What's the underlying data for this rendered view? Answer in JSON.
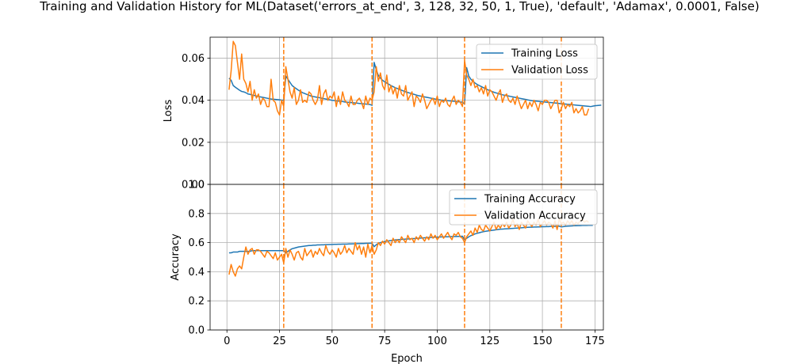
{
  "figure": {
    "title": "Training and Validation History for ML(Dataset('errors_at_end', 3, 128, 32, 50, 1, True), 'default', 'Adamax', 0.0001, False)"
  },
  "chart_data": [
    {
      "type": "line",
      "panel": "loss",
      "title": "",
      "xlabel": "",
      "ylabel": "Loss",
      "xlim": [
        -8,
        179
      ],
      "ylim": [
        0.0,
        0.07
      ],
      "x_ticks": [
        0,
        25,
        50,
        75,
        100,
        125,
        150,
        175
      ],
      "y_ticks": [
        0.0,
        0.02,
        0.04,
        0.06
      ],
      "y_tick_labels": [
        "0.00",
        "0.02",
        "0.04",
        "0.06"
      ],
      "grid": true,
      "legend": "upper right",
      "vlines": [
        27,
        69,
        113,
        159
      ],
      "series": [
        {
          "name": "Training Loss",
          "color": "#1f77b4",
          "x_start": 1,
          "values": [
            0.0505,
            0.0495,
            0.047,
            0.0462,
            0.0455,
            0.0448,
            0.0442,
            0.044,
            0.0436,
            0.043,
            0.0428,
            0.0425,
            0.0423,
            0.042,
            0.0418,
            0.0416,
            0.0414,
            0.0412,
            0.041,
            0.0408,
            0.0406,
            0.0405,
            0.0404,
            0.0403,
            0.0402,
            0.0401,
            0.04,
            0.0515,
            0.05,
            0.0485,
            0.047,
            0.0462,
            0.0455,
            0.0448,
            0.0442,
            0.0436,
            0.0432,
            0.0428,
            0.0424,
            0.042,
            0.0418,
            0.0416,
            0.0414,
            0.0412,
            0.041,
            0.0408,
            0.0406,
            0.0404,
            0.0402,
            0.04,
            0.0399,
            0.0397,
            0.0396,
            0.0395,
            0.0394,
            0.0392,
            0.0391,
            0.039,
            0.0389,
            0.0388,
            0.0387,
            0.0386,
            0.0385,
            0.0384,
            0.0383,
            0.0382,
            0.0381,
            0.038,
            0.0376,
            0.058,
            0.0545,
            0.0518,
            0.0505,
            0.0495,
            0.0488,
            0.0482,
            0.0476,
            0.047,
            0.0465,
            0.046,
            0.0456,
            0.0452,
            0.0448,
            0.0444,
            0.044,
            0.0437,
            0.0434,
            0.0431,
            0.0428,
            0.0425,
            0.0422,
            0.042,
            0.0418,
            0.0416,
            0.0414,
            0.0412,
            0.041,
            0.0408,
            0.0406,
            0.0404,
            0.0402,
            0.0401,
            0.04,
            0.0399,
            0.0398,
            0.0397,
            0.0396,
            0.0395,
            0.0394,
            0.0393,
            0.0392,
            0.0391,
            0.0382,
            0.0555,
            0.0515,
            0.05,
            0.049,
            0.0482,
            0.0475,
            0.047,
            0.0465,
            0.046,
            0.0455,
            0.045,
            0.0446,
            0.0442,
            0.0438,
            0.0435,
            0.0432,
            0.0429,
            0.0426,
            0.0424,
            0.0422,
            0.042,
            0.0418,
            0.0416,
            0.0414,
            0.0412,
            0.041,
            0.0408,
            0.0406,
            0.0404,
            0.0402,
            0.04,
            0.0398,
            0.0397,
            0.0396,
            0.0395,
            0.0394,
            0.0393,
            0.0392,
            0.0391,
            0.039,
            0.0389,
            0.0388,
            0.0387,
            0.0386,
            0.0385,
            0.0384,
            0.0383,
            0.0382,
            0.0381,
            0.038,
            0.0379,
            0.0378,
            0.0377,
            0.0376,
            0.0375,
            0.0374,
            0.0373,
            0.0372,
            0.0371,
            0.037,
            0.0372,
            0.0374,
            0.0375,
            0.0376,
            0.0377
          ]
        },
        {
          "name": "Validation Loss",
          "color": "#ff7f0e",
          "x_start": 1,
          "values": [
            0.045,
            0.054,
            0.068,
            0.066,
            0.058,
            0.05,
            0.062,
            0.05,
            0.048,
            0.044,
            0.049,
            0.04,
            0.045,
            0.041,
            0.043,
            0.038,
            0.041,
            0.04,
            0.037,
            0.037,
            0.05,
            0.04,
            0.039,
            0.035,
            0.033,
            0.04,
            0.037,
            0.056,
            0.05,
            0.044,
            0.041,
            0.046,
            0.038,
            0.04,
            0.045,
            0.039,
            0.04,
            0.039,
            0.044,
            0.043,
            0.04,
            0.038,
            0.04,
            0.047,
            0.038,
            0.043,
            0.045,
            0.04,
            0.042,
            0.041,
            0.044,
            0.037,
            0.042,
            0.038,
            0.044,
            0.04,
            0.039,
            0.037,
            0.042,
            0.038,
            0.038,
            0.04,
            0.041,
            0.039,
            0.036,
            0.042,
            0.038,
            0.041,
            0.04,
            0.044,
            0.056,
            0.049,
            0.053,
            0.047,
            0.045,
            0.052,
            0.044,
            0.047,
            0.043,
            0.046,
            0.041,
            0.047,
            0.043,
            0.042,
            0.047,
            0.04,
            0.042,
            0.044,
            0.037,
            0.042,
            0.041,
            0.039,
            0.043,
            0.04,
            0.036,
            0.038,
            0.04,
            0.041,
            0.038,
            0.042,
            0.037,
            0.04,
            0.039,
            0.041,
            0.038,
            0.037,
            0.04,
            0.042,
            0.038,
            0.04,
            0.039,
            0.037,
            0.059,
            0.052,
            0.05,
            0.047,
            0.05,
            0.046,
            0.047,
            0.044,
            0.046,
            0.043,
            0.047,
            0.042,
            0.045,
            0.044,
            0.042,
            0.04,
            0.043,
            0.045,
            0.039,
            0.042,
            0.043,
            0.04,
            0.039,
            0.041,
            0.038,
            0.042,
            0.039,
            0.036,
            0.038,
            0.04,
            0.036,
            0.039,
            0.037,
            0.04,
            0.038,
            0.035,
            0.039,
            0.038,
            0.04,
            0.04,
            0.039,
            0.036,
            0.038,
            0.04,
            0.04,
            0.034,
            0.036,
            0.039,
            0.036,
            0.038,
            0.037,
            0.039,
            0.034,
            0.036,
            0.034,
            0.035,
            0.037,
            0.033,
            0.033,
            0.036
          ]
        }
      ]
    },
    {
      "type": "line",
      "panel": "accuracy",
      "title": "",
      "xlabel": "Epoch",
      "ylabel": "Accuracy",
      "xlim": [
        -8,
        179
      ],
      "ylim": [
        0.0,
        1.0
      ],
      "x_ticks": [
        0,
        25,
        50,
        75,
        100,
        125,
        150,
        175
      ],
      "y_ticks": [
        0.0,
        0.2,
        0.4,
        0.6,
        0.8,
        1.0
      ],
      "y_tick_labels": [
        "0.0",
        "0.2",
        "0.4",
        "0.6",
        "0.8",
        "1.0"
      ],
      "grid": true,
      "legend": "upper right",
      "vlines": [
        27,
        69,
        113,
        159
      ],
      "series": [
        {
          "name": "Training Accuracy",
          "color": "#1f77b4",
          "x_start": 1,
          "values": [
            0.53,
            0.53,
            0.535,
            0.535,
            0.535,
            0.54,
            0.54,
            0.54,
            0.54,
            0.54,
            0.54,
            0.545,
            0.545,
            0.545,
            0.545,
            0.545,
            0.545,
            0.545,
            0.545,
            0.545,
            0.545,
            0.545,
            0.545,
            0.545,
            0.545,
            0.545,
            0.545,
            0.53,
            0.54,
            0.55,
            0.558,
            0.562,
            0.566,
            0.57,
            0.572,
            0.574,
            0.576,
            0.578,
            0.58,
            0.58,
            0.582,
            0.582,
            0.584,
            0.584,
            0.585,
            0.585,
            0.586,
            0.586,
            0.587,
            0.587,
            0.588,
            0.588,
            0.589,
            0.589,
            0.59,
            0.59,
            0.59,
            0.591,
            0.591,
            0.592,
            0.592,
            0.593,
            0.593,
            0.594,
            0.594,
            0.595,
            0.595,
            0.596,
            0.596,
            0.572,
            0.585,
            0.595,
            0.6,
            0.604,
            0.607,
            0.61,
            0.612,
            0.614,
            0.616,
            0.618,
            0.62,
            0.621,
            0.622,
            0.623,
            0.624,
            0.625,
            0.626,
            0.627,
            0.628,
            0.629,
            0.63,
            0.631,
            0.632,
            0.633,
            0.634,
            0.635,
            0.636,
            0.637,
            0.637,
            0.638,
            0.638,
            0.639,
            0.639,
            0.64,
            0.64,
            0.641,
            0.641,
            0.642,
            0.642,
            0.643,
            0.643,
            0.644,
            0.62,
            0.63,
            0.64,
            0.648,
            0.654,
            0.66,
            0.664,
            0.668,
            0.672,
            0.675,
            0.678,
            0.68,
            0.682,
            0.684,
            0.686,
            0.688,
            0.69,
            0.692,
            0.693,
            0.694,
            0.695,
            0.696,
            0.697,
            0.698,
            0.699,
            0.7,
            0.701,
            0.702,
            0.703,
            0.704,
            0.705,
            0.706,
            0.706,
            0.707,
            0.707,
            0.708,
            0.708,
            0.709,
            0.709,
            0.71,
            0.71,
            0.711,
            0.711,
            0.712,
            0.712,
            0.713,
            0.708,
            0.71,
            0.712,
            0.713,
            0.714,
            0.715,
            0.716,
            0.716,
            0.717,
            0.717,
            0.718,
            0.718,
            0.718,
            0.719,
            0.719,
            0.719
          ]
        },
        {
          "name": "Validation Accuracy",
          "color": "#ff7f0e",
          "x_start": 1,
          "values": [
            0.38,
            0.45,
            0.4,
            0.37,
            0.42,
            0.44,
            0.42,
            0.5,
            0.57,
            0.52,
            0.55,
            0.56,
            0.52,
            0.55,
            0.55,
            0.54,
            0.52,
            0.5,
            0.54,
            0.53,
            0.51,
            0.49,
            0.53,
            0.48,
            0.5,
            0.52,
            0.46,
            0.56,
            0.5,
            0.55,
            0.52,
            0.48,
            0.53,
            0.54,
            0.5,
            0.48,
            0.56,
            0.51,
            0.53,
            0.55,
            0.5,
            0.54,
            0.52,
            0.56,
            0.53,
            0.51,
            0.58,
            0.54,
            0.52,
            0.55,
            0.53,
            0.5,
            0.56,
            0.52,
            0.54,
            0.58,
            0.53,
            0.56,
            0.54,
            0.52,
            0.6,
            0.55,
            0.58,
            0.52,
            0.57,
            0.5,
            0.59,
            0.53,
            0.58,
            0.52,
            0.55,
            0.6,
            0.58,
            0.61,
            0.59,
            0.62,
            0.6,
            0.58,
            0.63,
            0.6,
            0.62,
            0.6,
            0.64,
            0.62,
            0.6,
            0.65,
            0.62,
            0.63,
            0.6,
            0.64,
            0.62,
            0.65,
            0.63,
            0.61,
            0.64,
            0.62,
            0.66,
            0.63,
            0.65,
            0.62,
            0.64,
            0.66,
            0.63,
            0.65,
            0.67,
            0.64,
            0.62,
            0.66,
            0.65,
            0.67,
            0.64,
            0.63,
            0.6,
            0.64,
            0.66,
            0.68,
            0.65,
            0.7,
            0.67,
            0.72,
            0.69,
            0.68,
            0.72,
            0.7,
            0.68,
            0.71,
            0.74,
            0.69,
            0.72,
            0.7,
            0.73,
            0.71,
            0.74,
            0.7,
            0.72,
            0.76,
            0.71,
            0.73,
            0.69,
            0.74,
            0.72,
            0.7,
            0.75,
            0.73,
            0.71,
            0.74,
            0.72,
            0.76,
            0.71,
            0.73,
            0.75,
            0.72,
            0.74,
            0.73,
            0.7,
            0.75,
            0.69,
            0.76,
            0.73,
            0.74,
            0.72,
            0.75,
            0.73,
            0.75,
            0.72,
            0.74,
            0.73,
            0.75,
            0.76,
            0.74,
            0.75,
            0.74
          ]
        }
      ]
    }
  ]
}
